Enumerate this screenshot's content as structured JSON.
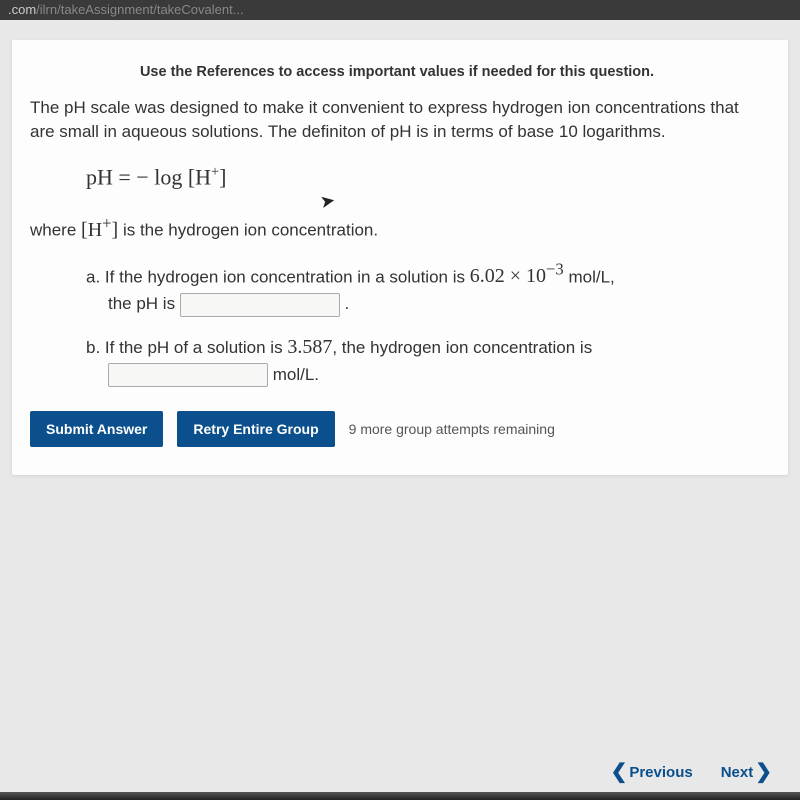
{
  "url": {
    "domain": ".com",
    "path": "/ilrn/takeAssignment/takeCovalent..."
  },
  "card": {
    "references_note": "Use the References to access important values if needed for this question.",
    "intro": "The pH scale was designed to make it convenient to express hydrogen ion concentrations that are small in aqueous solutions. The definiton of pH is in terms of base 10 logarithms.",
    "formula_html": "pH = − log [H<sup>+</sup>]",
    "where_prefix": "where ",
    "where_symbol_html": "[H<sup>+</sup>]",
    "where_suffix": " is the hydrogen ion concentration.",
    "part_a": {
      "label": "a.",
      "text_before": "If the hydrogen ion concentration in a solution is ",
      "value_html": "6.02 × 10<sup>−3</sup>",
      "unit": " mol/L,",
      "line2_before": "the pH is ",
      "line2_after": " ."
    },
    "part_b": {
      "label": "b.",
      "text_before": "If the pH of a solution is ",
      "value": "3.587",
      "text_after": ", the hydrogen ion concentration is",
      "unit_after": " mol/L."
    },
    "buttons": {
      "submit": "Submit Answer",
      "retry": "Retry Entire Group"
    },
    "attempts": "9 more group attempts remaining"
  },
  "nav": {
    "previous": "Previous",
    "next": "Next"
  }
}
